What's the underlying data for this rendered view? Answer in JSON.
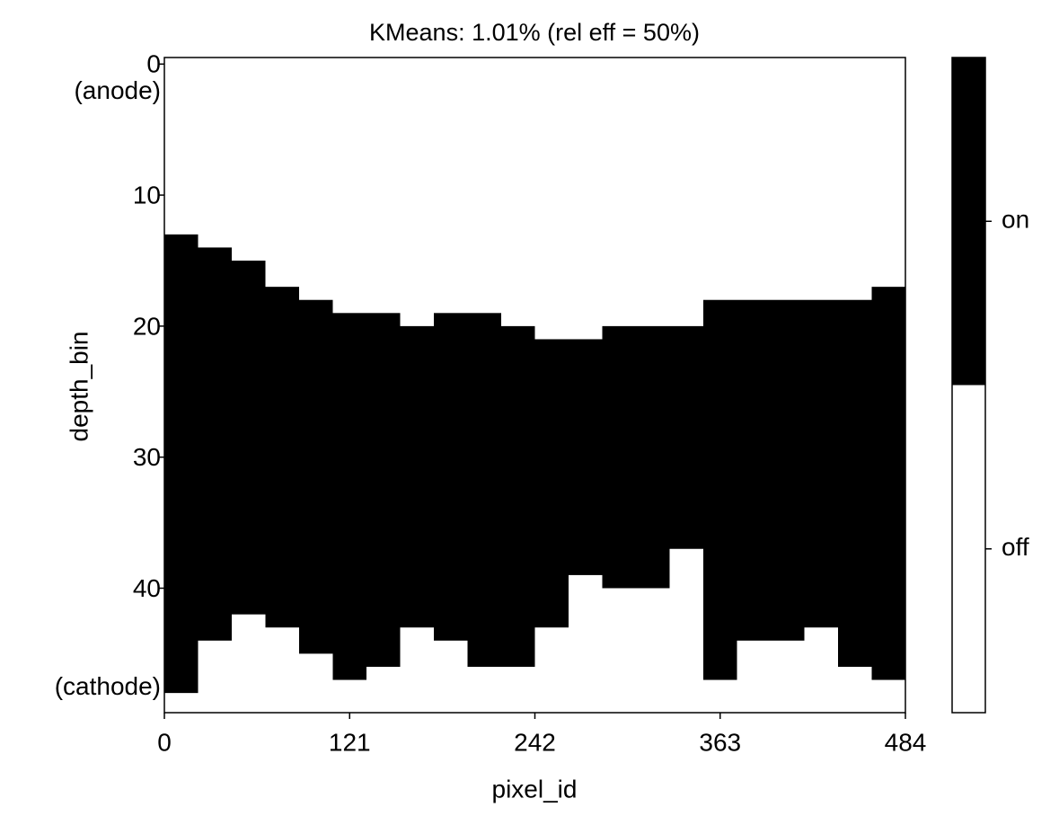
{
  "chart_data": {
    "type": "heatmap",
    "title": "KMeans: 1.01% (rel eff = 50%)",
    "x_label": "pixel_id",
    "y_label": "depth_bin",
    "xlim": [
      0,
      484
    ],
    "xticks": [
      0,
      121,
      242,
      363,
      484
    ],
    "ylim": [
      49.5,
      -0.5
    ],
    "yticks": [
      0,
      10,
      20,
      30,
      40,
      {
        "value": 2,
        "label": "(anode)"
      },
      {
        "value": 47.5,
        "label": "(cathode)"
      }
    ],
    "column_edges": [
      0,
      22,
      44,
      66,
      88,
      110,
      132,
      154,
      176,
      198,
      220,
      242,
      264,
      286,
      308,
      330,
      352,
      374,
      396,
      418,
      440,
      462,
      484
    ],
    "on_top": [
      13,
      14,
      15,
      17,
      18,
      19,
      19,
      20,
      19,
      19,
      20,
      21,
      21,
      20,
      20,
      20,
      18,
      18,
      18,
      18,
      18,
      17
    ],
    "on_bottom": [
      48,
      44,
      42,
      43,
      45,
      47,
      46,
      43,
      44,
      46,
      46,
      43,
      39,
      40,
      40,
      37,
      47,
      44,
      44,
      43,
      46,
      47
    ],
    "on_color": "#000000",
    "off_color": "#ffffff",
    "colorbar_lim": [
      0,
      1
    ],
    "colorbar_ticks": [
      {
        "value": 0.25,
        "label": "off"
      },
      {
        "value": 0.75,
        "label": "on"
      }
    ]
  }
}
